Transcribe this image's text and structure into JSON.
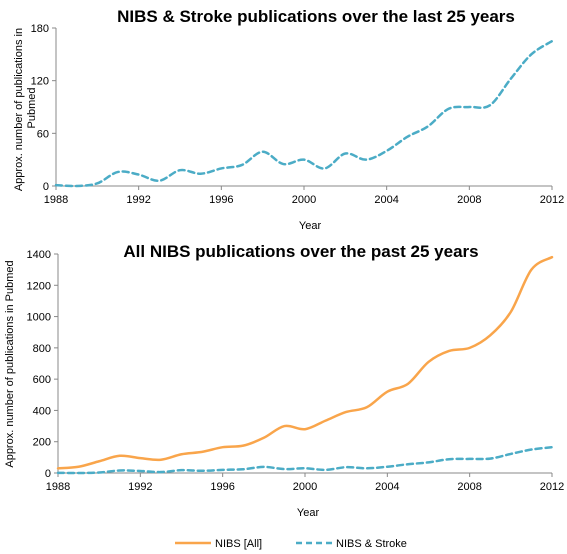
{
  "chart_data": [
    {
      "type": "line",
      "title": "NIBS & Stroke publications over the last 25 years",
      "xlabel": "Year",
      "ylabel": "Approx. number of publications in Pubmed",
      "xlim": [
        1988,
        2012
      ],
      "ylim": [
        0,
        180
      ],
      "x_ticks": [
        1988,
        1992,
        1996,
        2000,
        2004,
        2008,
        2012
      ],
      "y_ticks": [
        0,
        60,
        120,
        180
      ],
      "x": [
        1988,
        1989,
        1990,
        1991,
        1992,
        1993,
        1994,
        1995,
        1996,
        1997,
        1998,
        1999,
        2000,
        2001,
        2002,
        2003,
        2004,
        2005,
        2006,
        2007,
        2008,
        2009,
        2010,
        2011,
        2012
      ],
      "series": [
        {
          "name": "NIBS & Stroke",
          "color": "#4bacc6",
          "dashed": true,
          "values": [
            1,
            0,
            3,
            16,
            13,
            6,
            18,
            14,
            20,
            24,
            39,
            25,
            30,
            20,
            37,
            30,
            40,
            56,
            68,
            88,
            90,
            92,
            122,
            150,
            165
          ]
        }
      ]
    },
    {
      "type": "line",
      "title": "All NIBS publications over the past 25 years",
      "xlabel": "Year",
      "ylabel": "Approx. number of publications in Pubmed",
      "xlim": [
        1988,
        2012
      ],
      "ylim": [
        0,
        1400
      ],
      "x_ticks": [
        1988,
        1992,
        1996,
        2000,
        2004,
        2008,
        2012
      ],
      "y_ticks": [
        0,
        200,
        400,
        600,
        800,
        1000,
        1200,
        1400
      ],
      "x": [
        1988,
        1989,
        1990,
        1991,
        1992,
        1993,
        1994,
        1995,
        1996,
        1997,
        1998,
        1999,
        2000,
        2001,
        2002,
        2003,
        2004,
        2005,
        2006,
        2007,
        2008,
        2009,
        2010,
        2011,
        2012
      ],
      "series": [
        {
          "name": "NIBS [All]",
          "color": "#f9a54b",
          "dashed": false,
          "values": [
            30,
            40,
            75,
            110,
            95,
            85,
            120,
            135,
            165,
            175,
            225,
            300,
            280,
            335,
            390,
            420,
            520,
            570,
            710,
            780,
            800,
            880,
            1030,
            1300,
            1380
          ]
        },
        {
          "name": "NIBS & Stroke",
          "color": "#4bacc6",
          "dashed": true,
          "values": [
            1,
            0,
            3,
            16,
            13,
            6,
            18,
            14,
            20,
            24,
            39,
            25,
            30,
            20,
            37,
            30,
            40,
            56,
            68,
            88,
            90,
            92,
            122,
            150,
            165
          ]
        }
      ],
      "legend": {
        "position": "bottom",
        "entries": [
          "NIBS [All]",
          "NIBS & Stroke"
        ]
      }
    }
  ]
}
